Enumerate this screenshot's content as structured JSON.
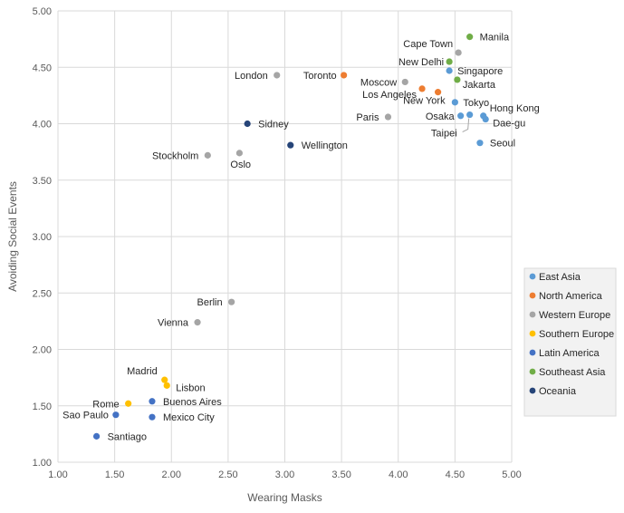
{
  "chart_data": {
    "type": "scatter",
    "title": "",
    "xlabel": "Wearing Masks",
    "ylabel": "Avoiding Social Events",
    "xlim": [
      1.0,
      5.0
    ],
    "ylim": [
      1.0,
      5.0
    ],
    "xticks": [
      "1.00",
      "1.50",
      "2.00",
      "2.50",
      "3.00",
      "3.50",
      "4.00",
      "4.50",
      "5.00"
    ],
    "yticks": [
      "1.00",
      "1.50",
      "2.00",
      "2.50",
      "3.00",
      "3.50",
      "4.00",
      "4.50",
      "5.00"
    ],
    "grid": "horizontal and vertical",
    "legend_position": "right",
    "series": [
      {
        "name": "East Asia",
        "color": "#5B9BD5",
        "points": [
          {
            "label": "Singapore",
            "x": 4.45,
            "y": 4.47
          },
          {
            "label": "Tokyo",
            "x": 4.5,
            "y": 4.19
          },
          {
            "label": "Hong Kong",
            "x": 4.75,
            "y": 4.07
          },
          {
            "label": "Dae-gu",
            "x": 4.77,
            "y": 4.04
          },
          {
            "label": "Osaka",
            "x": 4.55,
            "y": 4.07
          },
          {
            "label": "Taipei",
            "x": 4.63,
            "y": 4.08
          },
          {
            "label": "Seoul",
            "x": 4.72,
            "y": 3.83
          }
        ]
      },
      {
        "name": "North America",
        "color": "#ED7D31",
        "points": [
          {
            "label": "Toronto",
            "x": 3.52,
            "y": 4.43
          },
          {
            "label": "Los Angeles",
            "x": 4.21,
            "y": 4.31
          },
          {
            "label": "New York",
            "x": 4.35,
            "y": 4.28
          }
        ]
      },
      {
        "name": "Western Europe",
        "color": "#A5A5A5",
        "points": [
          {
            "label": "London",
            "x": 2.93,
            "y": 4.43
          },
          {
            "label": "Moscow",
            "x": 4.06,
            "y": 4.37
          },
          {
            "label": "Cape Town",
            "x": 4.53,
            "y": 4.63
          },
          {
            "label": "Paris",
            "x": 3.91,
            "y": 4.06
          },
          {
            "label": "Stockholm",
            "x": 2.32,
            "y": 3.72
          },
          {
            "label": "Oslo",
            "x": 2.6,
            "y": 3.74
          },
          {
            "label": "Berlin",
            "x": 2.53,
            "y": 2.42
          },
          {
            "label": "Vienna",
            "x": 2.23,
            "y": 2.24
          }
        ]
      },
      {
        "name": "Southern Europe",
        "color": "#FFC000",
        "points": [
          {
            "label": "Madrid",
            "x": 1.94,
            "y": 1.73
          },
          {
            "label": "Lisbon",
            "x": 1.96,
            "y": 1.68
          },
          {
            "label": "Rome",
            "x": 1.62,
            "y": 1.52
          }
        ]
      },
      {
        "name": "Latin America",
        "color": "#4472C4",
        "points": [
          {
            "label": "Buenos Aires",
            "x": 1.83,
            "y": 1.54
          },
          {
            "label": "Sao Paulo",
            "x": 1.51,
            "y": 1.42
          },
          {
            "label": "Mexico City",
            "x": 1.83,
            "y": 1.4
          },
          {
            "label": "Santiago",
            "x": 1.34,
            "y": 1.23
          }
        ]
      },
      {
        "name": "Southeast Asia",
        "color": "#70AD47",
        "points": [
          {
            "label": "Manila",
            "x": 4.63,
            "y": 4.77
          },
          {
            "label": "New Delhi",
            "x": 4.45,
            "y": 4.55
          },
          {
            "label": "Jakarta",
            "x": 4.52,
            "y": 4.39
          }
        ]
      },
      {
        "name": "Oceania",
        "color": "#264478",
        "points": [
          {
            "label": "Sidney",
            "x": 2.67,
            "y": 4.0
          },
          {
            "label": "Wellington",
            "x": 3.05,
            "y": 3.81
          }
        ]
      }
    ]
  }
}
